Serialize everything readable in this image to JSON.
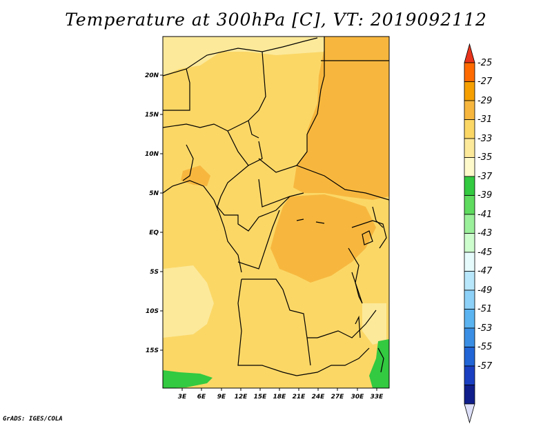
{
  "title": "Temperature at 300hPa [C], VT: 2019092112",
  "credit": "GrADS: IGES/COLA",
  "map": {
    "lat_labels": [
      "20N",
      "15N",
      "10N",
      "5N",
      "EQ",
      "5S",
      "10S",
      "15S"
    ],
    "lon_labels": [
      "3E",
      "6E",
      "9E",
      "12E",
      "15E",
      "18E",
      "21E",
      "24E",
      "27E",
      "30E",
      "33E"
    ]
  },
  "colorbar": {
    "labels": [
      "-25",
      "-27",
      "-29",
      "-31",
      "-33",
      "-35",
      "-37",
      "-39",
      "-41",
      "-43",
      "-45",
      "-47",
      "-49",
      "-51",
      "-53",
      "-55",
      "-57"
    ],
    "colors": [
      "#e8341c",
      "#ff6a00",
      "#f5a000",
      "#f7b73e",
      "#fbd766",
      "#fce99a",
      "#fffacb",
      "#33c940",
      "#5fdb5f",
      "#9bf09b",
      "#cdfccd",
      "#e6fcfc",
      "#b8e6fb",
      "#8dd0f8",
      "#5bb3f0",
      "#3a8fe4",
      "#2165d6",
      "#1a3fc0",
      "#0f1e8a",
      "#dde0f8"
    ]
  }
}
